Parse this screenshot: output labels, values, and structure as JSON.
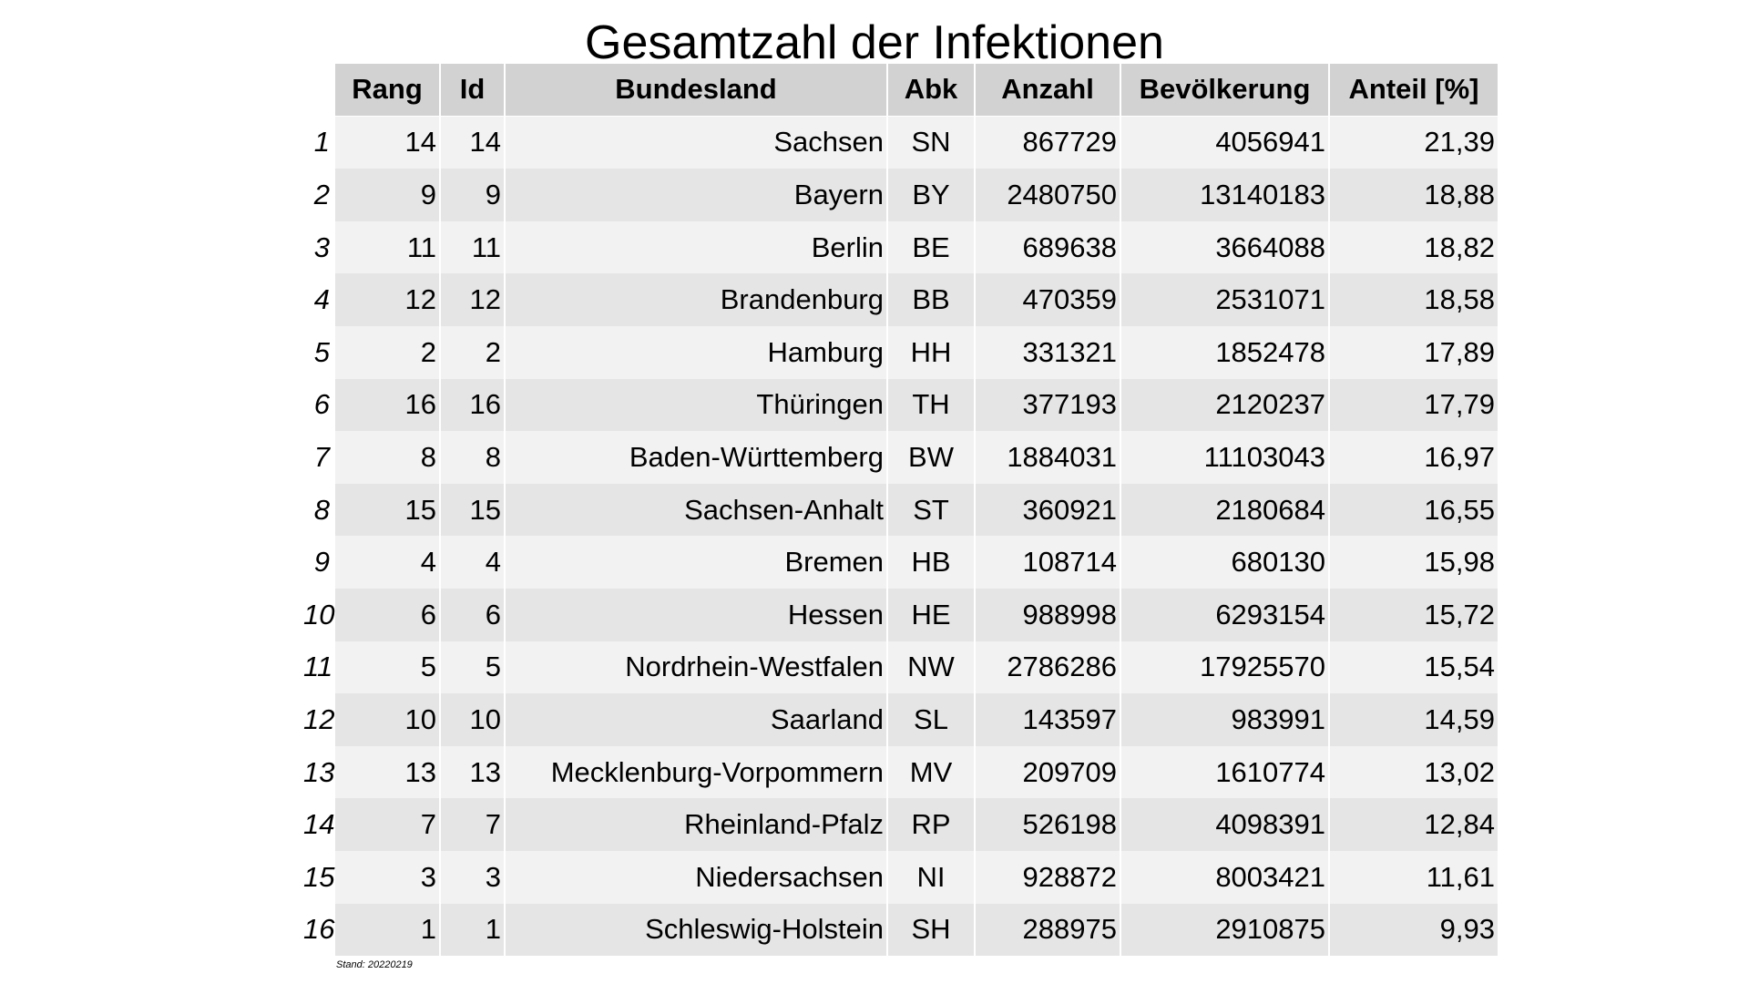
{
  "title": "Gesamtzahl der Infektionen",
  "footnote": "Stand: 20220219",
  "chart_data": {
    "type": "table",
    "title": "Gesamtzahl der Infektionen",
    "columns": [
      "",
      "Rang",
      "Id",
      "Bundesland",
      "Abk",
      "Anzahl",
      "Bevölkerung",
      "Anteil [%]"
    ],
    "rows": [
      [
        "1",
        "14",
        "14",
        "Sachsen",
        "SN",
        "867729",
        "4056941",
        "21,39"
      ],
      [
        "2",
        "9",
        "9",
        "Bayern",
        "BY",
        "2480750",
        "13140183",
        "18,88"
      ],
      [
        "3",
        "11",
        "11",
        "Berlin",
        "BE",
        "689638",
        "3664088",
        "18,82"
      ],
      [
        "4",
        "12",
        "12",
        "Brandenburg",
        "BB",
        "470359",
        "2531071",
        "18,58"
      ],
      [
        "5",
        "2",
        "2",
        "Hamburg",
        "HH",
        "331321",
        "1852478",
        "17,89"
      ],
      [
        "6",
        "16",
        "16",
        "Thüringen",
        "TH",
        "377193",
        "2120237",
        "17,79"
      ],
      [
        "7",
        "8",
        "8",
        "Baden-Württemberg",
        "BW",
        "1884031",
        "11103043",
        "16,97"
      ],
      [
        "8",
        "15",
        "15",
        "Sachsen-Anhalt",
        "ST",
        "360921",
        "2180684",
        "16,55"
      ],
      [
        "9",
        "4",
        "4",
        "Bremen",
        "HB",
        "108714",
        "680130",
        "15,98"
      ],
      [
        "10",
        "6",
        "6",
        "Hessen",
        "HE",
        "988998",
        "6293154",
        "15,72"
      ],
      [
        "11",
        "5",
        "5",
        "Nordrhein-Westfalen",
        "NW",
        "2786286",
        "17925570",
        "15,54"
      ],
      [
        "12",
        "10",
        "10",
        "Saarland",
        "SL",
        "143597",
        "983991",
        "14,59"
      ],
      [
        "13",
        "13",
        "13",
        "Mecklenburg-Vorpommern",
        "MV",
        "209709",
        "1610774",
        "13,02"
      ],
      [
        "14",
        "7",
        "7",
        "Rheinland-Pfalz",
        "RP",
        "526198",
        "4098391",
        "12,84"
      ],
      [
        "15",
        "3",
        "3",
        "Niedersachsen",
        "NI",
        "928872",
        "8003421",
        "11,61"
      ],
      [
        "16",
        "1",
        "1",
        "Schleswig-Holstein",
        "SH",
        "288975",
        "2910875",
        "9,93"
      ]
    ]
  }
}
